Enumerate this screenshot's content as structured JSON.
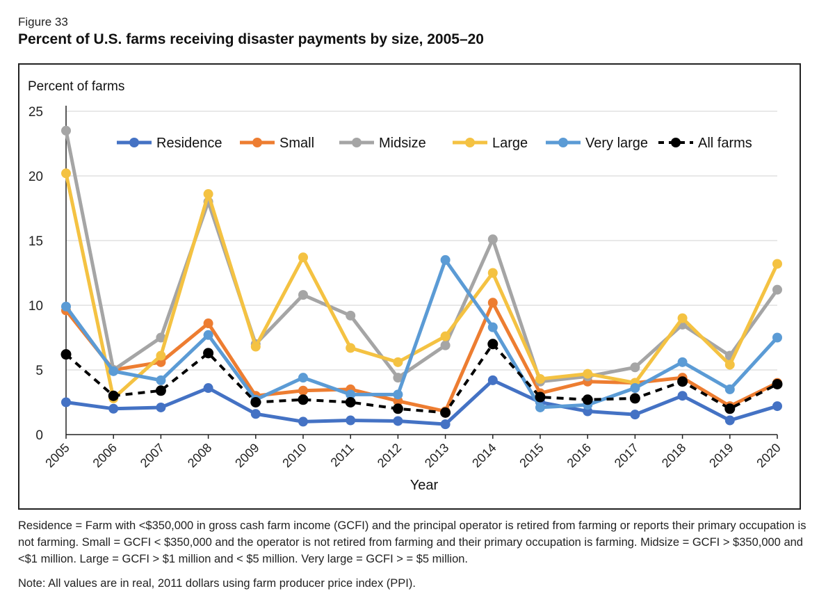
{
  "figure_label": "Figure 33",
  "figure_title": "Percent of U.S. farms receiving disaster payments by size, 2005–20",
  "footnote_definitions": "Residence = Farm with <$350,000 in gross cash farm income (GCFI) and the principal operator is retired from farming or reports their primary occupation is not farming. Small = GCFI < $350,000 and the operator is not retired from farming and their primary occupation is farming. Midsize = GCFI > $350,000 and <$1 million. Large = GCFI > $1 million and < $5 million. Very large = GCFI > = $5 million.",
  "footnote_note": "Note: All values are in real, 2011 dollars using farm producer price index (PPI).",
  "chart_data": {
    "type": "line",
    "title": "",
    "xlabel": "Year",
    "ylabel": "Percent of farms",
    "ylim": [
      0,
      25
    ],
    "yticks": [
      0,
      5,
      10,
      15,
      20,
      25
    ],
    "grid": "horizontal",
    "legend_position": "top",
    "x": [
      "2005",
      "2006",
      "2007",
      "2008",
      "2009",
      "2010",
      "2011",
      "2012",
      "2013",
      "2014",
      "2015",
      "2016",
      "2017",
      "2018",
      "2019",
      "2020"
    ],
    "series": [
      {
        "name": "Residence",
        "color": "#4472c4",
        "dashed": false,
        "values": [
          2.5,
          2.0,
          2.1,
          3.6,
          1.6,
          1.0,
          1.1,
          1.05,
          0.8,
          4.2,
          2.5,
          1.8,
          1.55,
          3.0,
          1.1,
          2.2
        ]
      },
      {
        "name": "Small",
        "color": "#ed7d31",
        "dashed": false,
        "values": [
          9.6,
          5.0,
          5.6,
          8.6,
          3.0,
          3.4,
          3.5,
          2.6,
          1.8,
          10.2,
          3.2,
          4.1,
          4.0,
          4.4,
          2.2,
          4.0
        ]
      },
      {
        "name": "Midsize",
        "color": "#a5a5a5",
        "dashed": false,
        "values": [
          23.5,
          5.0,
          7.5,
          18.0,
          7.0,
          10.8,
          9.2,
          4.4,
          6.9,
          15.1,
          4.1,
          4.5,
          5.2,
          8.5,
          6.1,
          11.2
        ]
      },
      {
        "name": "Large",
        "color": "#f4c242",
        "dashed": false,
        "values": [
          20.2,
          2.8,
          6.1,
          18.6,
          6.8,
          13.7,
          6.7,
          5.6,
          7.6,
          12.5,
          4.3,
          4.7,
          4.0,
          9.0,
          5.4,
          13.2
        ]
      },
      {
        "name": "Very large",
        "color": "#5b9bd5",
        "dashed": false,
        "values": [
          9.9,
          4.9,
          4.2,
          7.7,
          2.7,
          4.4,
          3.1,
          3.1,
          13.5,
          8.3,
          2.1,
          2.3,
          3.6,
          5.6,
          3.5,
          7.5
        ]
      },
      {
        "name": "All farms",
        "color": "#000000",
        "dashed": true,
        "values": [
          6.2,
          3.0,
          3.4,
          6.3,
          2.5,
          2.7,
          2.5,
          2.0,
          1.7,
          7.0,
          2.9,
          2.7,
          2.8,
          4.1,
          2.0,
          3.9
        ]
      }
    ]
  }
}
